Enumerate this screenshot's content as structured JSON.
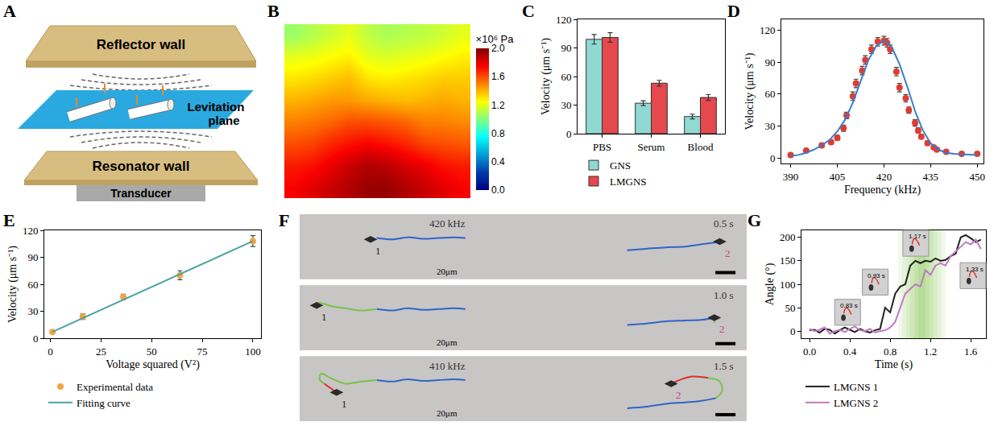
{
  "chart_data": [
    {
      "label": "A",
      "type": "diagram",
      "reflector": "Reflector wall",
      "plane": "Levitation plane",
      "resonator": "Resonator wall",
      "transducer": "Transducer"
    },
    {
      "label": "B",
      "type": "heatmap",
      "tick_labels": false,
      "cells": [
        [
          1.75,
          1.8,
          1.85,
          1.9,
          1.95,
          1.95,
          1.9,
          1.85,
          1.8,
          1.75
        ],
        [
          1.7,
          1.72,
          1.78,
          1.85,
          1.9,
          1.88,
          1.82,
          1.78,
          1.72,
          1.7
        ],
        [
          1.6,
          1.62,
          1.68,
          1.72,
          1.75,
          1.72,
          1.68,
          1.62,
          1.6,
          1.58
        ],
        [
          1.5,
          1.52,
          1.55,
          1.6,
          1.6,
          1.58,
          1.55,
          1.5,
          1.5,
          1.48
        ],
        [
          1.4,
          1.42,
          1.45,
          1.45,
          1.42,
          1.4,
          1.38,
          1.4,
          1.42,
          1.4
        ],
        [
          1.3,
          1.32,
          1.35,
          1.38,
          1.3,
          1.28,
          1.3,
          1.32,
          1.35,
          1.35
        ],
        [
          1.2,
          1.22,
          1.25,
          1.28,
          1.2,
          1.18,
          1.2,
          1.22,
          1.25,
          1.28
        ],
        [
          1.05,
          1.1,
          1.15,
          1.2,
          1.12,
          1.08,
          1.1,
          1.12,
          1.15,
          1.2
        ]
      ],
      "colorbar": {
        "title": "×10⁶ Pa",
        "range": [
          0,
          2
        ],
        "ticks": [
          {
            "value": 0,
            "label": "0.0"
          },
          0.4,
          0.8,
          1.2,
          1.6,
          {
            "value": 2,
            "label": "2.0"
          }
        ]
      }
    },
    {
      "label": "C",
      "type": "bar",
      "categories": [
        "PBS",
        "Serum",
        "Blood"
      ],
      "series": [
        {
          "name": "GNS",
          "color": "#8fd9d2",
          "values": [
            99,
            32,
            18
          ],
          "errors": [
            5,
            2.5,
            2.5
          ]
        },
        {
          "name": "LMGNS",
          "color": "#e5484d",
          "values": [
            101,
            53,
            38
          ],
          "errors": [
            5,
            3,
            3
          ]
        }
      ],
      "ylabel": "Velocity (μm s⁻¹)",
      "ylim": [
        0,
        120
      ],
      "yticks": [
        0,
        30,
        60,
        90,
        120
      ],
      "legend": "bottom"
    },
    {
      "label": "D",
      "type": "scatter",
      "xlabel": "Frequency (kHz)",
      "ylabel": "Velocity (μm s⁻¹)",
      "series": [
        {
          "type": "scatter",
          "color": "#e03c31",
          "marker": "circle",
          "x": [
            390,
            395,
            400,
            403,
            405,
            407,
            408,
            410,
            411,
            413,
            414,
            416,
            418,
            420,
            421,
            422,
            424,
            425,
            427,
            428,
            430,
            431,
            432,
            434,
            436,
            437,
            440,
            445,
            450
          ],
          "values": [
            3,
            7,
            12,
            15,
            19,
            28,
            40,
            58,
            70,
            82,
            92,
            102,
            109,
            110,
            108,
            102,
            81,
            66,
            56,
            45,
            33,
            26,
            20,
            14,
            10,
            8,
            6,
            4,
            4
          ],
          "errors": [
            1,
            1.5,
            2,
            2,
            2.5,
            3,
            3,
            4,
            4,
            4,
            4,
            4,
            4,
            4,
            4,
            4,
            4,
            4,
            3.5,
            3,
            3,
            2.5,
            2,
            2,
            1.5,
            1.5,
            1,
            1,
            1
          ]
        },
        {
          "type": "line",
          "color": "#3a7dc9",
          "x": [
            390,
            392.5,
            395,
            397.5,
            400,
            402.5,
            405,
            407.5,
            410,
            412.5,
            415,
            417.5,
            420,
            422.5,
            425,
            427.5,
            430,
            432.5,
            435,
            437.5,
            440,
            442.5,
            445,
            447.5,
            450
          ],
          "values": [
            2,
            3,
            5,
            8,
            12,
            17,
            25,
            36,
            52,
            72,
            92,
            105,
            110,
            104,
            88,
            67,
            44,
            26,
            14,
            8,
            5,
            4,
            3.5,
            3,
            3
          ]
        }
      ],
      "xlim": [
        387,
        452
      ],
      "xticks": [
        390,
        405,
        420,
        435,
        450
      ],
      "ylim": [
        -5,
        130
      ],
      "yticks": [
        0,
        30,
        60,
        90,
        120
      ]
    },
    {
      "label": "E",
      "type": "scatter",
      "xlabel": "Voltage squared (V²)",
      "ylabel": "Velocity (μm s⁻¹)",
      "series": [
        {
          "name": "Experimental data",
          "type": "scatter",
          "color": "#f2a541",
          "marker": "circle",
          "x": [
            1,
            16,
            36,
            64,
            100
          ],
          "values": [
            7,
            24,
            46,
            70,
            108
          ],
          "errors": [
            1,
            3,
            3,
            5,
            6
          ]
        },
        {
          "name": "Fitting curve",
          "type": "line",
          "color": "#4aa3a2",
          "x": [
            1,
            100
          ],
          "values": [
            7,
            108
          ]
        }
      ],
      "xlim": [
        -3,
        104
      ],
      "xticks": [
        0,
        25,
        50,
        75,
        100
      ],
      "ylim": [
        0,
        120
      ],
      "yticks": [
        0,
        30,
        60,
        90,
        120
      ],
      "legend": "bottom"
    },
    {
      "label": "F",
      "type": "image_sequence",
      "xlim": [
        0,
        580
      ],
      "ylim": [
        0,
        90
      ],
      "tick_labels": false,
      "frames": [
        {
          "frequency": "420 kHz",
          "time": "0.5 s",
          "scale_bar": "20μm",
          "particles": [
            {
              "label": "1",
              "color": "#222222",
              "position": [
                92,
                55
              ],
              "paths": [
                {
                  "color": "#2f64c8",
                  "x": [
                    100,
                    120,
                    140,
                    160,
                    180,
                    200,
                    215
                  ],
                  "y": [
                    57,
                    55,
                    58,
                    56,
                    57,
                    58,
                    57
                  ]
                }
              ]
            },
            {
              "label": "2",
              "color": "#d0408a",
              "position": [
                545,
                52
              ],
              "paths": [
                {
                  "color": "#2f64c8",
                  "x": [
                    425,
                    450,
                    475,
                    500,
                    520,
                    540
                  ],
                  "y": [
                    40,
                    42,
                    44,
                    45,
                    48,
                    51
                  ]
                }
              ]
            }
          ]
        },
        {
          "time": "1.0 s",
          "scale_bar": "20μm",
          "particles": [
            {
              "label": "1",
              "color": "#222222",
              "position": [
                22,
                62
              ],
              "paths": [
                {
                  "color": "#2f64c8",
                  "x": [
                    100,
                    120,
                    140,
                    160,
                    180,
                    200,
                    215
                  ],
                  "y": [
                    57,
                    55,
                    58,
                    56,
                    57,
                    58,
                    57
                  ]
                },
                {
                  "color": "#79c24a",
                  "x": [
                    100,
                    80,
                    60,
                    45,
                    32,
                    25,
                    22
                  ],
                  "y": [
                    57,
                    55,
                    58,
                    60,
                    64,
                    66,
                    62
                  ]
                }
              ]
            },
            {
              "label": "2",
              "color": "#d0408a",
              "position": [
                538,
                45
              ],
              "paths": [
                {
                  "color": "#2f64c8",
                  "x": [
                    425,
                    450,
                    475,
                    500,
                    520,
                    535
                  ],
                  "y": [
                    35,
                    37,
                    40,
                    41,
                    42,
                    44
                  ]
                },
                {
                  "color": "#79c24a",
                  "x": [
                    535,
                    538,
                    538
                  ],
                  "y": [
                    44,
                    42,
                    38
                  ]
                }
              ]
            }
          ]
        },
        {
          "frequency": "410 kHz",
          "time": "1.5 s",
          "scale_bar": "20μm",
          "particles": [
            {
              "label": "1",
              "color": "#222222",
              "position": [
                48,
                40
              ],
              "paths": [
                {
                  "color": "#2f64c8",
                  "x": [
                    100,
                    120,
                    140,
                    160,
                    180,
                    200,
                    215
                  ],
                  "y": [
                    57,
                    55,
                    58,
                    56,
                    57,
                    58,
                    57
                  ]
                },
                {
                  "color": "#79c24a",
                  "x": [
                    100,
                    80,
                    60,
                    40,
                    28,
                    26,
                    32
                  ],
                  "y": [
                    57,
                    55,
                    52,
                    60,
                    66,
                    58,
                    52
                  ]
                },
                {
                  "color": "#e0302a",
                  "x": [
                    32,
                    40,
                    48
                  ],
                  "y": [
                    52,
                    46,
                    40
                  ]
                }
              ]
            },
            {
              "label": "2",
              "color": "#d0408a",
              "position": [
                482,
                52
              ],
              "paths": [
                {
                  "color": "#2f64c8",
                  "x": [
                    425,
                    450,
                    475,
                    500,
                    520,
                    540
                  ],
                  "y": [
                    18,
                    20,
                    24,
                    26,
                    28,
                    32
                  ]
                },
                {
                  "color": "#79c24a",
                  "x": [
                    540,
                    548,
                    545,
                    530
                  ],
                  "y": [
                    32,
                    42,
                    55,
                    60
                  ]
                },
                {
                  "color": "#e0302a",
                  "x": [
                    530,
                    510,
                    495,
                    482
                  ],
                  "y": [
                    60,
                    62,
                    58,
                    52
                  ]
                }
              ]
            }
          ]
        }
      ]
    },
    {
      "label": "G",
      "type": "line",
      "xlabel": "Time (s)",
      "ylabel": "Angle (°)",
      "x": [
        0,
        0.05,
        0.1,
        0.15,
        0.2,
        0.25,
        0.3,
        0.35,
        0.4,
        0.45,
        0.5,
        0.55,
        0.6,
        0.65,
        0.7,
        0.75,
        0.8,
        0.85,
        0.9,
        0.95,
        1,
        1.05,
        1.1,
        1.15,
        1.2,
        1.25,
        1.3,
        1.35,
        1.4,
        1.45,
        1.5,
        1.55,
        1.6,
        1.65,
        1.7
      ],
      "series": [
        {
          "name": "LMGNS 1",
          "color": "#222222",
          "values": [
            2,
            3,
            -3,
            5,
            3,
            -5,
            2,
            8,
            3,
            -2,
            5,
            0,
            -3,
            2,
            5,
            50,
            40,
            80,
            95,
            100,
            140,
            150,
            145,
            150,
            148,
            155,
            150,
            152,
            160,
            165,
            200,
            205,
            198,
            190,
            195
          ]
        },
        {
          "name": "LMGNS 2",
          "color": "#c27ac2",
          "values": [
            5,
            0,
            3,
            8,
            -5,
            0,
            3,
            -2,
            5,
            10,
            2,
            0,
            5,
            -3,
            0,
            2,
            8,
            20,
            50,
            80,
            90,
            100,
            95,
            130,
            120,
            140,
            145,
            140,
            160,
            170,
            180,
            190,
            185,
            195,
            175
          ]
        }
      ],
      "band": {
        "x": [
          0.88,
          1.35
        ],
        "color": "#7cc242"
      },
      "insets": [
        "0.83 s",
        "0.93 s",
        "1.17 s",
        "1.33 s"
      ],
      "xlim": [
        -0.08,
        1.75
      ],
      "xticks": [
        {
          "value": 0,
          "label": "0.0"
        },
        0.4,
        0.8,
        1.2,
        1.6
      ],
      "ylim": [
        -15,
        215
      ],
      "yticks": [
        0,
        50,
        100,
        150,
        200
      ],
      "legend": "bottom"
    }
  ]
}
